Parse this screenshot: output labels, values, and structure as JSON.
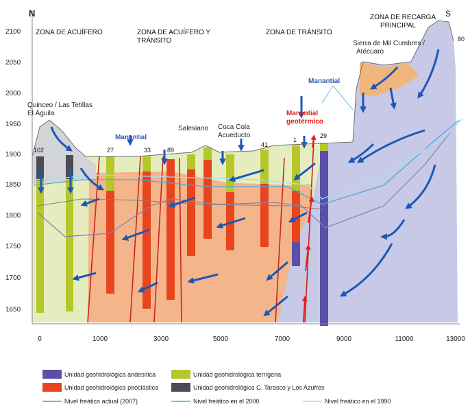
{
  "orientation": {
    "north": "N",
    "south": "S"
  },
  "zones": [
    {
      "id": "acuifero",
      "lines": [
        "ZONA DE ACUÍFERO"
      ]
    },
    {
      "id": "acuifero-transito",
      "lines": [
        "ZONA DE ACUÍFERO Y",
        "TRÁNSITO"
      ]
    },
    {
      "id": "transito",
      "lines": [
        "ZONA DE TRÁNSITO"
      ]
    },
    {
      "id": "recarga",
      "lines": [
        "ZONA DE RECARGA",
        "PRINCIPAL"
      ]
    }
  ],
  "places": {
    "quinceo": [
      "Quinceo / Las Tetillas",
      "El Águila"
    ],
    "sierra": [
      "Sierra de Mil Cumbres /",
      "Atécuaro"
    ],
    "salesiano": "Salesiano",
    "cocacola": [
      "Coca Cola",
      "Acueducto"
    ],
    "manantial_left": "Manantial",
    "manantial_right": "Manantial",
    "manantial_geo": [
      "Manantial",
      "geotérmico"
    ]
  },
  "wells": [
    "102",
    "27",
    "33",
    "89",
    "41",
    "1",
    "29",
    "80"
  ],
  "y_axis": {
    "ticks": [
      "2100",
      "2050",
      "2000",
      "1950",
      "1900",
      "1850",
      "1800",
      "1750",
      "1700",
      "1650"
    ]
  },
  "x_axis": {
    "ticks": [
      "0",
      "1000",
      "3000",
      "5000",
      "7000",
      "9000",
      "11000",
      "13000"
    ]
  },
  "legend": [
    {
      "id": "andesitica",
      "label": "Unidad geohidrológica andesítica",
      "color": "#5b4fa8"
    },
    {
      "id": "terrigena",
      "label": "Unidad geohidrológica terrígena",
      "color": "#b6c72b"
    },
    {
      "id": "piroclastica",
      "label": "Unidad geohidrológica piroclástica",
      "color": "#e8451f"
    },
    {
      "id": "tarasco",
      "label": "Unidad geohidrológica C. Tarasco y Los Azufres",
      "color": "#4a4d57"
    },
    {
      "id": "nivel2007",
      "label": "Nivel freático actual (2007)",
      "color": "#8d7fb0"
    },
    {
      "id": "nivel2000",
      "label": "Nivel freático en el 2000",
      "color": "#4aa8d8"
    },
    {
      "id": "nivel1990",
      "label": "Nivel freático en el 1990",
      "color": "#a9dcf0"
    }
  ],
  "colors": {
    "terrigena_bg": "#e5edbf",
    "piroclastico_bg": "#f5b58a",
    "andesitico_bg": "#c8c9e6",
    "tarasco_bg": "#d2d4d8",
    "arrow": "#1c57b6",
    "fault": "#c8261c"
  }
}
